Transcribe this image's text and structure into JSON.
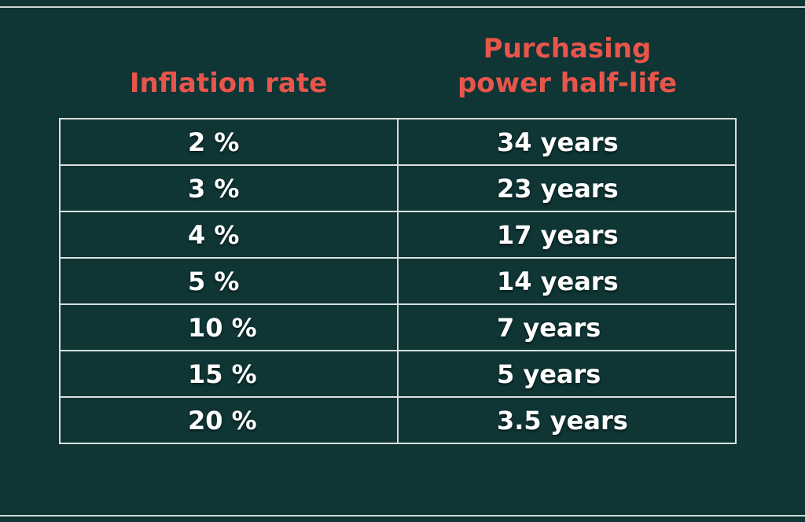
{
  "colors": {
    "background": "#0f3535",
    "header_text": "#e8554b",
    "cell_text": "#ffffff",
    "border": "#d8e0de"
  },
  "chart_data": {
    "type": "table",
    "columns": [
      "Inflation rate",
      "Purchasing power half-life"
    ],
    "header_lines": {
      "col2_line1": "Purchasing",
      "col2_line2": "power half-life"
    },
    "rows": [
      {
        "rate": "2 %",
        "half_life": "34 years"
      },
      {
        "rate": "3 %",
        "half_life": "23 years"
      },
      {
        "rate": "4 %",
        "half_life": "17 years"
      },
      {
        "rate": "5 %",
        "half_life": "14 years"
      },
      {
        "rate": "10 %",
        "half_life": "7 years"
      },
      {
        "rate": "15 %",
        "half_life": "5 years"
      },
      {
        "rate": "20 %",
        "half_life": "3.5 years"
      }
    ]
  }
}
